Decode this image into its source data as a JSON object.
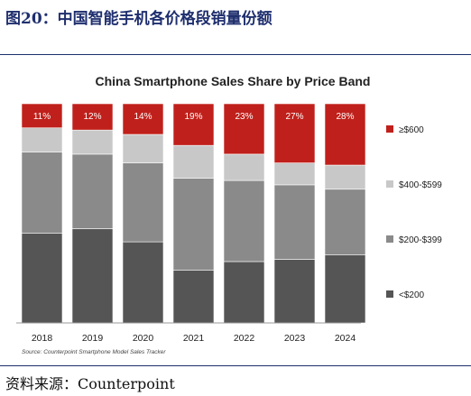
{
  "figure": {
    "title": "图20：中国智能手机各价格段销量份额",
    "source": "资料来源：Counterpoint"
  },
  "chart_data": {
    "type": "bar",
    "stacked": true,
    "title": "China Smartphone Sales Share by Price Band",
    "source_note": "Source: Counterpoint Smartphone Model Sales Tracker",
    "watermark": "Counterpoint",
    "categories": [
      "2018",
      "2019",
      "2020",
      "2021",
      "2022",
      "2023",
      "2024"
    ],
    "ylim": [
      0,
      100
    ],
    "grid": false,
    "legend_position": "right",
    "series": [
      {
        "name": "<$200",
        "color": "#555555",
        "values": [
          41,
          43,
          37,
          24,
          28,
          29,
          31
        ]
      },
      {
        "name": "$200-$399",
        "color": "#8a8a8a",
        "values": [
          37,
          34,
          36,
          42,
          37,
          34,
          30
        ]
      },
      {
        "name": "$400-$599",
        "color": "#c8c8c8",
        "values": [
          11,
          11,
          13,
          15,
          12,
          10,
          11
        ]
      },
      {
        "name": "≥$600",
        "color": "#c0201b",
        "values": [
          11,
          12,
          14,
          19,
          23,
          27,
          28
        ],
        "show_labels": true
      }
    ]
  }
}
